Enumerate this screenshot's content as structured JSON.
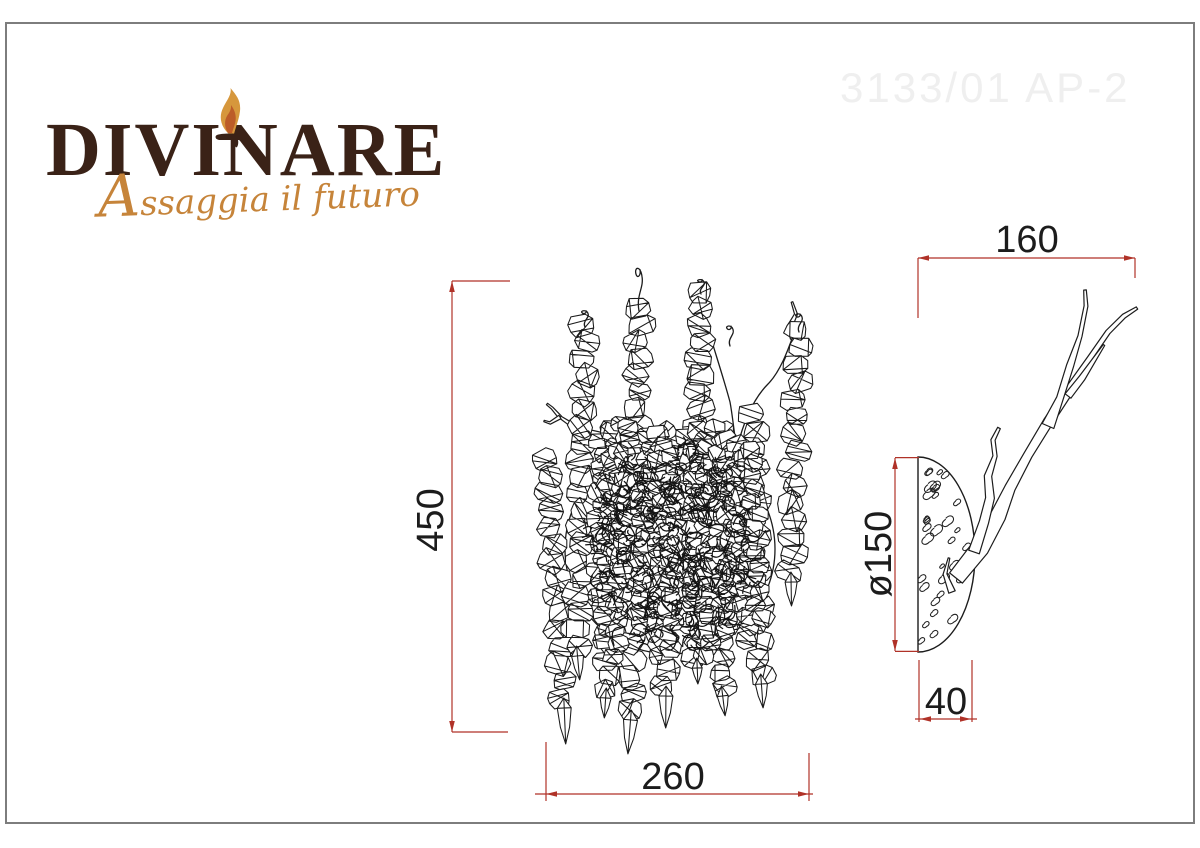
{
  "logo": {
    "brand": "DIVINARE",
    "tagline": "Assaggia il futuro",
    "brand_color": "#3a2217",
    "tagline_color": "#c6843a",
    "flame_outer_color": "#d6973c",
    "flame_inner_color": "#bc5c28"
  },
  "model_number": "3133/01 AP-2",
  "drawing": {
    "type": "wall-sconce technical drawing, front view and side view",
    "dim_color": "#b03228",
    "line_color": "#1c1c1c",
    "dimensions": {
      "height": "450",
      "width": "260",
      "depth": "160",
      "diameter": "ø150",
      "mount_depth": "40"
    }
  }
}
